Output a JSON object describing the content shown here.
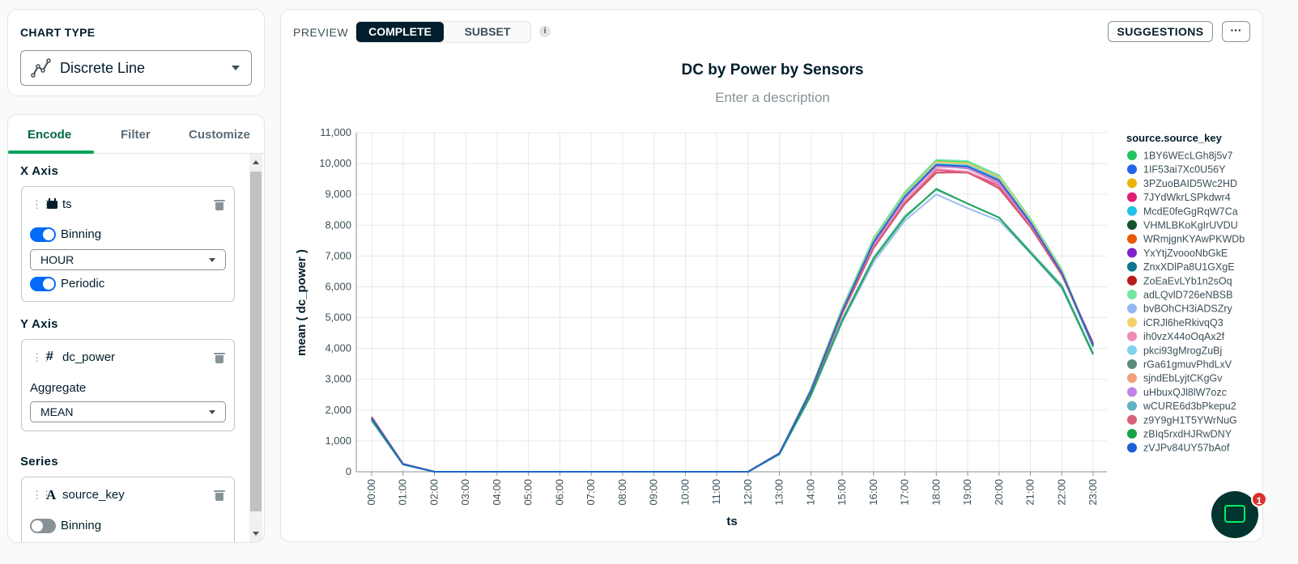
{
  "chart_type_panel": {
    "title": "CHART TYPE",
    "selected": "Discrete Line",
    "icon": "line-chart-icon"
  },
  "encode_panel": {
    "tabs": [
      {
        "label": "Encode"
      },
      {
        "label": "Filter"
      },
      {
        "label": "Customize"
      }
    ],
    "active_tab": "Encode",
    "x_axis": {
      "title": "X Axis",
      "field": "ts",
      "field_icon": "date-field-icon",
      "binning_label": "Binning",
      "binning_on": true,
      "binning_value": "HOUR",
      "periodic_label": "Periodic",
      "periodic_on": true
    },
    "y_axis": {
      "title": "Y Axis",
      "field": "dc_power",
      "field_icon": "#",
      "aggregate_label": "Aggregate",
      "aggregate_value": "MEAN"
    },
    "series": {
      "title": "Series",
      "field": "source_key",
      "field_icon": "A",
      "binning_label": "Binning",
      "binning_on": false
    }
  },
  "preview_bar": {
    "label": "PREVIEW",
    "seg_complete": "COMPLETE",
    "seg_subset": "SUBSET",
    "info": "i",
    "suggestions": "SUGGESTIONS",
    "more": "···"
  },
  "chat": {
    "badge": "1"
  },
  "chart_data": {
    "type": "line",
    "title": "DC by Power by Sensors",
    "description_placeholder": "Enter a description",
    "xlabel": "ts",
    "ylabel": "mean ( dc_power )",
    "ylim": [
      0,
      11000
    ],
    "yticks": [
      "0",
      "1,000",
      "2,000",
      "3,000",
      "4,000",
      "5,000",
      "6,000",
      "7,000",
      "8,000",
      "9,000",
      "10,000",
      "11,000"
    ],
    "grid": true,
    "legend_title": "source.source_key",
    "legend_position": "right",
    "categories": [
      "00:00",
      "01:00",
      "02:00",
      "03:00",
      "04:00",
      "05:00",
      "06:00",
      "07:00",
      "08:00",
      "09:00",
      "10:00",
      "11:00",
      "12:00",
      "13:00",
      "14:00",
      "15:00",
      "16:00",
      "17:00",
      "18:00",
      "19:00",
      "20:00",
      "21:00",
      "22:00",
      "23:00"
    ],
    "series": [
      {
        "name": "1BY6WEcLGh8j5v7",
        "color": "#22c55e",
        "values": [
          1700,
          250,
          0,
          0,
          0,
          0,
          0,
          0,
          0,
          0,
          0,
          0,
          0,
          600,
          2650,
          5300,
          7550,
          9050,
          10100,
          10050,
          9600,
          8200,
          6550,
          4050
        ]
      },
      {
        "name": "1IF53ai7Xc0U56Y",
        "color": "#2563eb",
        "values": [
          1760,
          250,
          0,
          0,
          0,
          0,
          0,
          0,
          0,
          0,
          0,
          0,
          0,
          600,
          2620,
          5220,
          7450,
          8950,
          9980,
          9900,
          9450,
          8100,
          6450,
          4150
        ]
      },
      {
        "name": "3PZuoBAID5Wc2HD",
        "color": "#eab308",
        "values": [
          1740,
          240,
          0,
          0,
          0,
          0,
          0,
          0,
          0,
          0,
          0,
          0,
          0,
          590,
          2660,
          5250,
          7480,
          8980,
          10050,
          10000,
          9550,
          8150,
          6500,
          4100
        ]
      },
      {
        "name": "7JYdWkrLSPkdwr4",
        "color": "#e11d74",
        "values": [
          1780,
          260,
          0,
          0,
          0,
          0,
          0,
          0,
          0,
          0,
          0,
          0,
          0,
          600,
          2600,
          5150,
          7300,
          8750,
          9800,
          9700,
          9300,
          8000,
          6400,
          4150
        ]
      },
      {
        "name": "McdE0feGgRqW7Ca",
        "color": "#22c1e6",
        "values": [
          1720,
          245,
          0,
          0,
          0,
          0,
          0,
          0,
          0,
          0,
          0,
          0,
          0,
          595,
          2640,
          5240,
          7460,
          8960,
          10000,
          9950,
          9500,
          8120,
          6480,
          4080
        ]
      },
      {
        "name": "VHMLBKoKgIrUVDU",
        "color": "#14532d",
        "values": [
          1700,
          240,
          0,
          0,
          0,
          0,
          0,
          0,
          0,
          0,
          0,
          0,
          0,
          585,
          2610,
          5200,
          7420,
          8900,
          9950,
          9850,
          9400,
          8080,
          6420,
          4060
        ]
      },
      {
        "name": "WRmjgnKYAwPKWDb",
        "color": "#ea580c",
        "values": [
          1750,
          255,
          0,
          0,
          0,
          0,
          0,
          0,
          0,
          0,
          0,
          0,
          0,
          600,
          2640,
          5220,
          7440,
          8920,
          9900,
          9880,
          9420,
          8100,
          6460,
          4120
        ]
      },
      {
        "name": "YxYtjZvoooNbGkE",
        "color": "#7e22ce",
        "values": [
          1730,
          250,
          0,
          0,
          0,
          0,
          0,
          0,
          0,
          0,
          0,
          0,
          0,
          590,
          2620,
          5200,
          7400,
          8880,
          9920,
          9860,
          9380,
          8060,
          6420,
          4100
        ]
      },
      {
        "name": "ZnxXDlPa8U1GXgE",
        "color": "#0e7490",
        "values": [
          1720,
          245,
          0,
          0,
          0,
          0,
          0,
          0,
          0,
          0,
          0,
          0,
          0,
          595,
          2630,
          5230,
          7470,
          8970,
          9970,
          9920,
          9470,
          8110,
          6470,
          4090
        ]
      },
      {
        "name": "ZoEaEvLYb1n2sOq",
        "color": "#b91c1c",
        "values": [
          1770,
          255,
          0,
          0,
          0,
          0,
          0,
          0,
          0,
          0,
          0,
          0,
          0,
          600,
          2590,
          5130,
          7250,
          8700,
          9700,
          9720,
          9200,
          7950,
          6380,
          4180
        ]
      },
      {
        "name": "adLQvlD726eNBSB",
        "color": "#6ee7a0",
        "values": [
          1710,
          240,
          0,
          0,
          0,
          0,
          0,
          0,
          0,
          0,
          0,
          0,
          0,
          600,
          2680,
          5320,
          7580,
          9080,
          10120,
          10080,
          9620,
          8220,
          6560,
          4040
        ]
      },
      {
        "name": "bvBOhCH3iADSZry",
        "color": "#93b8f0",
        "values": [
          1650,
          230,
          0,
          0,
          0,
          0,
          0,
          0,
          0,
          0,
          0,
          0,
          0,
          560,
          2450,
          4850,
          6800,
          8150,
          9000,
          8550,
          8150,
          7100,
          5950,
          3850
        ]
      },
      {
        "name": "iCRJl6heRkivqQ3",
        "color": "#f5d06e",
        "values": [
          1740,
          250,
          0,
          0,
          0,
          0,
          0,
          0,
          0,
          0,
          0,
          0,
          0,
          595,
          2650,
          5260,
          7490,
          8990,
          10040,
          10010,
          9560,
          8160,
          6510,
          4110
        ]
      },
      {
        "name": "ih0vzX44oOqAx2f",
        "color": "#f08ab6",
        "values": [
          1760,
          255,
          0,
          0,
          0,
          0,
          0,
          0,
          0,
          0,
          0,
          0,
          0,
          600,
          2610,
          5170,
          7330,
          8780,
          9820,
          9740,
          9320,
          8020,
          6410,
          4140
        ]
      },
      {
        "name": "pkci93gMrogZuBj",
        "color": "#7dd3e8",
        "values": [
          1720,
          245,
          0,
          0,
          0,
          0,
          0,
          0,
          0,
          0,
          0,
          0,
          0,
          592,
          2630,
          5230,
          7460,
          8950,
          9990,
          9940,
          9490,
          8110,
          6470,
          4080
        ]
      },
      {
        "name": "rGa61gmuvPhdLxV",
        "color": "#5b8a7a",
        "values": [
          1700,
          240,
          0,
          0,
          0,
          0,
          0,
          0,
          0,
          0,
          0,
          0,
          0,
          585,
          2600,
          5190,
          7410,
          8890,
          9940,
          9840,
          9390,
          8070,
          6410,
          4060
        ]
      },
      {
        "name": "sjndEbLyjtCKgGv",
        "color": "#f2a07b",
        "values": [
          1750,
          250,
          0,
          0,
          0,
          0,
          0,
          0,
          0,
          0,
          0,
          0,
          0,
          598,
          2640,
          5210,
          7430,
          8910,
          9890,
          9870,
          9410,
          8090,
          6450,
          4120
        ]
      },
      {
        "name": "uHbuxQJl8lW7ozc",
        "color": "#c084e0",
        "values": [
          1730,
          248,
          0,
          0,
          0,
          0,
          0,
          0,
          0,
          0,
          0,
          0,
          0,
          590,
          2620,
          5200,
          7400,
          8870,
          9910,
          9850,
          9370,
          8050,
          6420,
          4100
        ]
      },
      {
        "name": "wCURE6d3bPkepu2",
        "color": "#60b3c4",
        "values": [
          1690,
          235,
          0,
          0,
          0,
          0,
          0,
          0,
          0,
          0,
          0,
          0,
          0,
          580,
          2500,
          4950,
          6950,
          8300,
          9150,
          8700,
          8250,
          7150,
          6050,
          3850
        ]
      },
      {
        "name": "z9Y9gH1T5YWrNuG",
        "color": "#d9627a",
        "values": [
          1770,
          255,
          0,
          0,
          0,
          0,
          0,
          0,
          0,
          0,
          0,
          0,
          0,
          600,
          2590,
          5140,
          7260,
          8720,
          9720,
          9700,
          9220,
          7960,
          6390,
          4170
        ]
      },
      {
        "name": "zBIq5rxdHJRwDNY",
        "color": "#16a34a",
        "values": [
          1680,
          240,
          0,
          0,
          0,
          0,
          0,
          0,
          0,
          0,
          0,
          0,
          0,
          580,
          2480,
          4900,
          6900,
          8250,
          9180,
          8700,
          8250,
          7100,
          6000,
          3800
        ]
      },
      {
        "name": "zVJPv84UY57bAof",
        "color": "#1d5fd6",
        "values": [
          1740,
          250,
          0,
          0,
          0,
          0,
          0,
          0,
          0,
          0,
          0,
          0,
          0,
          596,
          2625,
          5215,
          7445,
          8935,
          9960,
          9905,
          9455,
          8095,
          6455,
          4110
        ]
      }
    ]
  }
}
